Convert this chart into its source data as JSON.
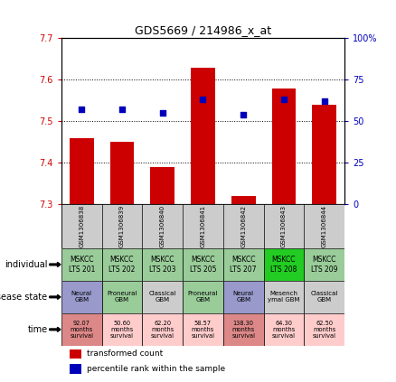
{
  "title": "GDS5669 / 214986_x_at",
  "samples": [
    "GSM1306838",
    "GSM1306839",
    "GSM1306840",
    "GSM1306841",
    "GSM1306842",
    "GSM1306843",
    "GSM1306844"
  ],
  "transformed_count": [
    7.46,
    7.45,
    7.39,
    7.63,
    7.32,
    7.58,
    7.54
  ],
  "percentile_rank": [
    57,
    57,
    55,
    63,
    54,
    63,
    62
  ],
  "ylim_left": [
    7.3,
    7.7
  ],
  "ylim_right": [
    0,
    100
  ],
  "yticks_left": [
    7.3,
    7.4,
    7.5,
    7.6,
    7.7
  ],
  "yticks_right": [
    0,
    25,
    50,
    75,
    100
  ],
  "ytick_labels_right": [
    "0",
    "25",
    "50",
    "75",
    "100%"
  ],
  "bar_color": "#cc0000",
  "dot_color": "#0000bb",
  "individual_labels": [
    "MSKCC\nLTS 201",
    "MSKCC\nLTS 202",
    "MSKCC\nLTS 203",
    "MSKCC\nLTS 205",
    "MSKCC\nLTS 207",
    "MSKCC\nLTS 208",
    "MSKCC\nLTS 209"
  ],
  "individual_colors": [
    "#99cc99",
    "#99cc99",
    "#99cc99",
    "#99cc99",
    "#99cc99",
    "#22cc22",
    "#99cc99"
  ],
  "disease_labels": [
    "Neural\nGBM",
    "Proneural\nGBM",
    "Classical\nGBM",
    "Proneural\nGBM",
    "Neural\nGBM",
    "Mesench\nymal GBM",
    "Classical\nGBM"
  ],
  "disease_colors": [
    "#9999cc",
    "#99cc99",
    "#cccccc",
    "#99cc99",
    "#9999cc",
    "#cccccc",
    "#cccccc"
  ],
  "time_labels": [
    "92.07\nmonths\nsurvival",
    "50.60\nmonths\nsurvival",
    "62.20\nmonths\nsurvival",
    "58.57\nmonths\nsurvival",
    "138.30\nmonths\nsurvival",
    "64.30\nmonths\nsurvival",
    "62.50\nmonths\nsurvival"
  ],
  "time_colors": [
    "#dd8888",
    "#ffcccc",
    "#ffcccc",
    "#ffcccc",
    "#dd8888",
    "#ffcccc",
    "#ffcccc"
  ],
  "row_labels": [
    "individual",
    "disease state",
    "time"
  ],
  "legend_bar_label": "transformed count",
  "legend_dot_label": "percentile rank within the sample",
  "left_tick_color": "#cc0000",
  "right_tick_color": "#0000bb",
  "xtick_bg_color": "#cccccc",
  "grid_color": "#000000"
}
